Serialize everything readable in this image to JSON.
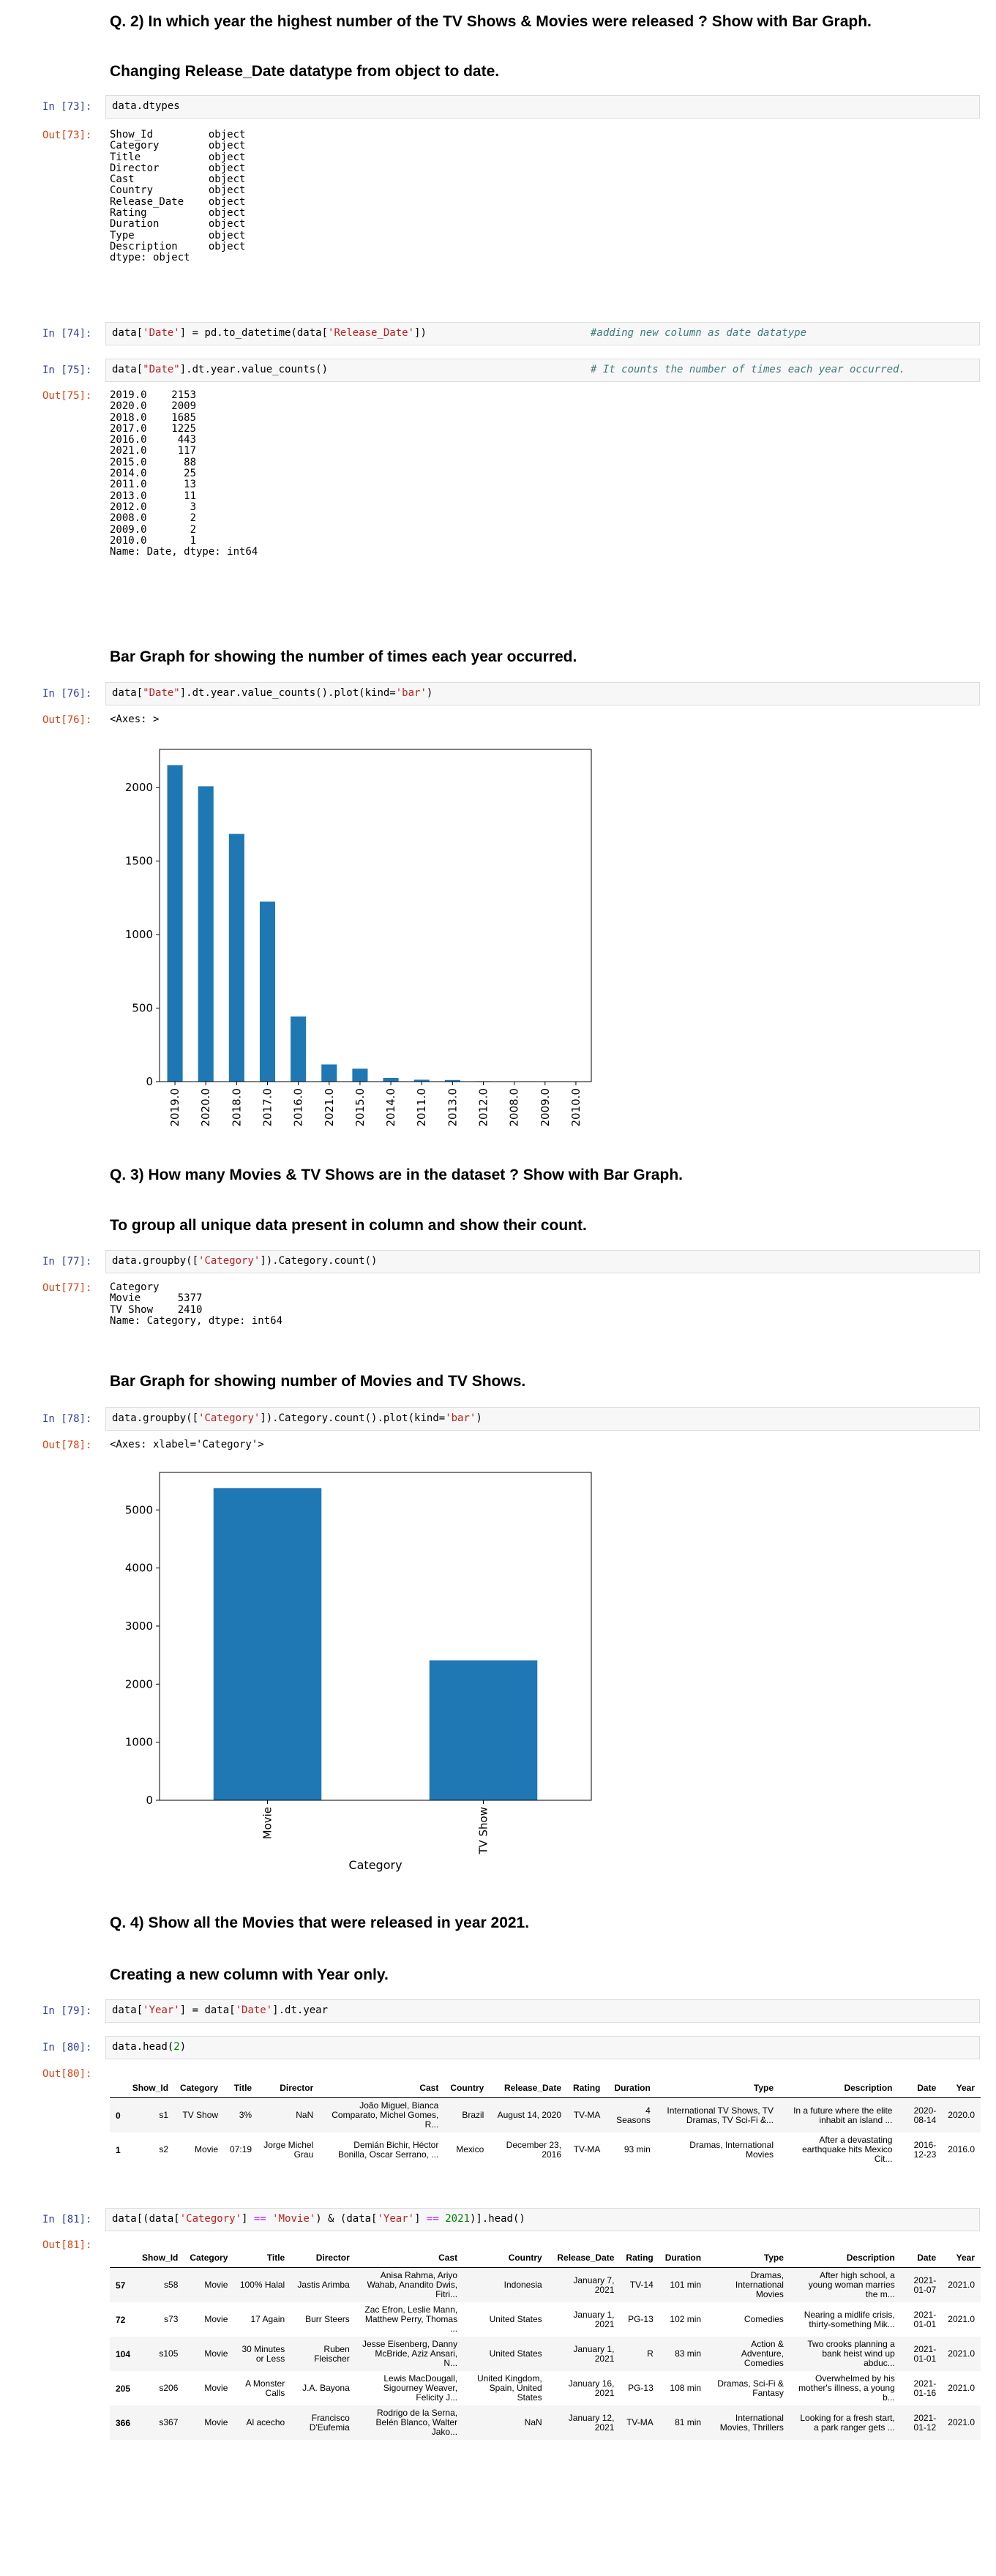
{
  "headings": {
    "q2": "Q. 2) In which year the highest number of the TV Shows & Movies were released ? Show with Bar Graph.",
    "change_dtype": "Changing Release_Date datatype from object to date.",
    "bar_years": "Bar Graph for showing the number of times each year occurred.",
    "q3": "Q. 3) How many Movies & TV Shows are in the dataset ? Show with Bar Graph.",
    "group": "To group all unique data present in column and show their count.",
    "bar_cat": "Bar Graph for showing number of Movies and TV Shows.",
    "q4": "Q. 4) Show all the Movies that were released in year 2021.",
    "year_col": "Creating a new column with Year only."
  },
  "cells": {
    "c73": {
      "in": "In [73]:",
      "out": "Out[73]:",
      "code": "data.dtypes",
      "output": "Show_Id         object\nCategory        object\nTitle           object\nDirector        object\nCast            object\nCountry         object\nRelease_Date    object\nRating          object\nDuration        object\nType            object\nDescription     object\ndtype: object"
    },
    "c74": {
      "in": "In [74]:",
      "code_a": "data[",
      "code_b": "'Date'",
      "code_c": "] = pd.to_datetime(data[",
      "code_d": "'Release_Date'",
      "code_e": "])",
      "comment": "#adding new column as date datatype"
    },
    "c75": {
      "in": "In [75]:",
      "out": "Out[75]:",
      "code_a": "data[",
      "code_b": "\"Date\"",
      "code_c": "].dt.year.value_counts()",
      "comment": "# It counts the number of times each year occurred.",
      "output": "2019.0    2153\n2020.0    2009\n2018.0    1685\n2017.0    1225\n2016.0     443\n2021.0     117\n2015.0      88\n2014.0      25\n2011.0      13\n2013.0      11\n2012.0       3\n2008.0       2\n2009.0       2\n2010.0       1\nName: Date, dtype: int64"
    },
    "c76": {
      "in": "In [76]:",
      "out": "Out[76]:",
      "code_a": "data[",
      "code_b": "\"Date\"",
      "code_c": "].dt.year.value_counts().plot(kind=",
      "code_d": "'bar'",
      "code_e": ")",
      "output": "<Axes: >"
    },
    "c77": {
      "in": "In [77]:",
      "out": "Out[77]:",
      "code_a": "data.groupby([",
      "code_b": "'Category'",
      "code_c": "]).Category.count()",
      "output": "Category\nMovie      5377\nTV Show    2410\nName: Category, dtype: int64"
    },
    "c78": {
      "in": "In [78]:",
      "out": "Out[78]:",
      "code_a": "data.groupby([",
      "code_b": "'Category'",
      "code_c": "]).Category.count().plot(kind=",
      "code_d": "'bar'",
      "code_e": ")",
      "output": "<Axes: xlabel='Category'>"
    },
    "c79": {
      "in": "In [79]:",
      "code_a": "data[",
      "code_b": "'Year'",
      "code_c": "] = data[",
      "code_d": "'Date'",
      "code_e": "].dt.year"
    },
    "c80": {
      "in": "In [80]:",
      "out": "Out[80]:",
      "code_a": "data.head(",
      "code_b": "2",
      "code_c": ")"
    },
    "c81": {
      "in": "In [81]:",
      "out": "Out[81]:",
      "code_a": "data[(data[",
      "code_b": "'Category'",
      "code_c": "] ",
      "code_d": "==",
      "code_e": " ",
      "code_f": "'Movie'",
      "code_g": ") & (data[",
      "code_h": "'Year'",
      "code_i": "] ",
      "code_j": "==",
      "code_k": " ",
      "code_l": "2021",
      "code_m": ")].head()"
    }
  },
  "table_columns": [
    "",
    "Show_Id",
    "Category",
    "Title",
    "Director",
    "Cast",
    "Country",
    "Release_Date",
    "Rating",
    "Duration",
    "Type",
    "Description",
    "Date",
    "Year"
  ],
  "table80": [
    [
      "0",
      "s1",
      "TV Show",
      "3%",
      "NaN",
      "João Miguel, Bianca Comparato, Michel Gomes, R...",
      "Brazil",
      "August 14, 2020",
      "TV-MA",
      "4 Seasons",
      "International TV Shows, TV Dramas, TV Sci-Fi &...",
      "In a future where the elite inhabit an island ...",
      "2020-08-14",
      "2020.0"
    ],
    [
      "1",
      "s2",
      "Movie",
      "07:19",
      "Jorge Michel Grau",
      "Demián Bichir, Héctor Bonilla, Oscar Serrano, ...",
      "Mexico",
      "December 23, 2016",
      "TV-MA",
      "93 min",
      "Dramas, International Movies",
      "After a devastating earthquake hits Mexico Cit...",
      "2016-12-23",
      "2016.0"
    ]
  ],
  "table81": [
    [
      "57",
      "s58",
      "Movie",
      "100% Halal",
      "Jastis Arimba",
      "Anisa Rahma, Ariyo Wahab, Anandito Dwis, Fitri...",
      "Indonesia",
      "January 7, 2021",
      "TV-14",
      "101 min",
      "Dramas, International Movies",
      "After high school, a young woman marries the m...",
      "2021-01-07",
      "2021.0"
    ],
    [
      "72",
      "s73",
      "Movie",
      "17 Again",
      "Burr Steers",
      "Zac Efron, Leslie Mann, Matthew Perry, Thomas ...",
      "United States",
      "January 1, 2021",
      "PG-13",
      "102 min",
      "Comedies",
      "Nearing a midlife crisis, thirty-something Mik...",
      "2021-01-01",
      "2021.0"
    ],
    [
      "104",
      "s105",
      "Movie",
      "30 Minutes or Less",
      "Ruben Fleischer",
      "Jesse Eisenberg, Danny McBride, Aziz Ansari, N...",
      "United States",
      "January 1, 2021",
      "R",
      "83 min",
      "Action & Adventure, Comedies",
      "Two crooks planning a bank heist wind up abduc...",
      "2021-01-01",
      "2021.0"
    ],
    [
      "205",
      "s206",
      "Movie",
      "A Monster Calls",
      "J.A. Bayona",
      "Lewis MacDougall, Sigourney Weaver, Felicity J...",
      "United Kingdom, Spain, United States",
      "January 16, 2021",
      "PG-13",
      "108 min",
      "Dramas, Sci-Fi & Fantasy",
      "Overwhelmed by his mother's illness, a young b...",
      "2021-01-16",
      "2021.0"
    ],
    [
      "366",
      "s367",
      "Movie",
      "Al acecho",
      "Francisco D'Eufemia",
      "Rodrigo de la Serna, Belén Blanco, Walter Jako...",
      "NaN",
      "January 12, 2021",
      "TV-MA",
      "81 min",
      "International Movies, Thrillers",
      "Looking for a fresh start, a park ranger gets ...",
      "2021-01-12",
      "2021.0"
    ]
  ],
  "chart_data": [
    {
      "type": "bar",
      "categories": [
        "2019.0",
        "2020.0",
        "2018.0",
        "2017.0",
        "2016.0",
        "2021.0",
        "2015.0",
        "2014.0",
        "2011.0",
        "2013.0",
        "2012.0",
        "2008.0",
        "2009.0",
        "2010.0"
      ],
      "values": [
        2153,
        2009,
        1685,
        1225,
        443,
        117,
        88,
        25,
        13,
        11,
        3,
        2,
        2,
        1
      ],
      "yticks": [
        0,
        500,
        1000,
        1500,
        2000
      ],
      "ylim": [
        0,
        2260
      ],
      "title": "",
      "xlabel": "",
      "ylabel": "",
      "color": "#1f77b4"
    },
    {
      "type": "bar",
      "categories": [
        "Movie",
        "TV Show"
      ],
      "values": [
        5377,
        2410
      ],
      "yticks": [
        0,
        1000,
        2000,
        3000,
        4000,
        5000
      ],
      "ylim": [
        0,
        5646
      ],
      "title": "",
      "xlabel": "Category",
      "ylabel": "",
      "color": "#1f77b4"
    }
  ]
}
